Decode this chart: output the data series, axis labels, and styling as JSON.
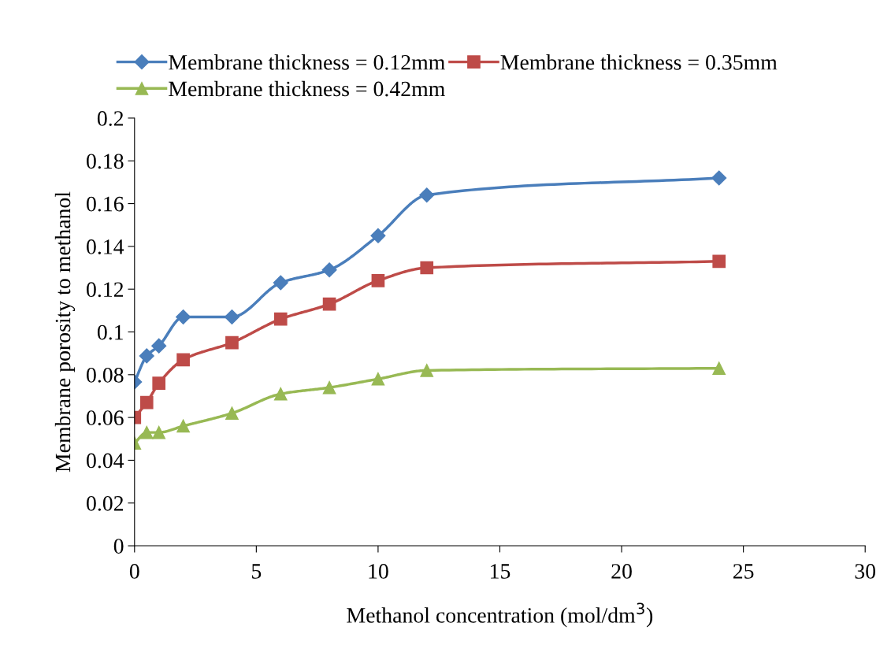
{
  "chart_data": {
    "type": "line",
    "xlabel": "Methanol concentration (mol/dm$^{3}$)",
    "ylabel": "Membrane porosity to methanol",
    "x": [
      0,
      0.5,
      1,
      2,
      4,
      6,
      8,
      10,
      12,
      24
    ],
    "series": [
      {
        "name": "Membrane thickness = 0.12mm",
        "color": "#4a7ebb",
        "marker": "diamond",
        "values": [
          0.0766,
          0.0888,
          0.0935,
          0.107,
          0.107,
          0.123,
          0.129,
          0.145,
          0.164,
          0.172
        ]
      },
      {
        "name": "Membrane thickness = 0.35mm",
        "color": "#be4b48",
        "marker": "square",
        "values": [
          0.06,
          0.067,
          0.076,
          0.087,
          0.095,
          0.106,
          0.113,
          0.124,
          0.13,
          0.133
        ]
      },
      {
        "name": "Membrane thickness = 0.42mm",
        "color": "#98b954",
        "marker": "triangle",
        "values": [
          0.048,
          0.053,
          0.053,
          0.056,
          0.062,
          0.071,
          0.074,
          0.078,
          0.082,
          0.083
        ]
      }
    ],
    "xlim": [
      0,
      30
    ],
    "xticks": [
      0,
      5,
      10,
      15,
      20,
      25,
      30
    ],
    "ylim": [
      0,
      0.2
    ],
    "yticks": [
      0,
      0.02,
      0.04,
      0.06,
      0.08,
      0.1,
      0.12,
      0.14,
      0.16,
      0.18,
      0.2
    ],
    "grid": false,
    "legend": "top",
    "line_style": "solid"
  }
}
